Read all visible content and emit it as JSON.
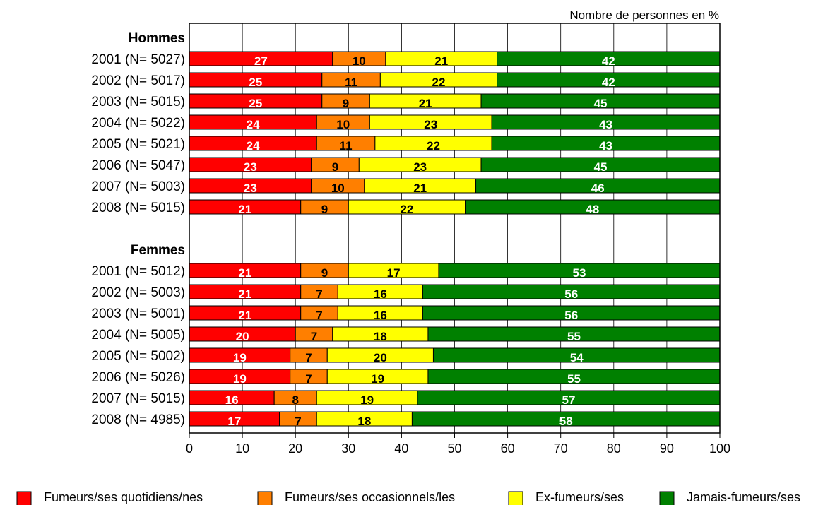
{
  "chart_data": {
    "type": "bar",
    "orientation": "horizontal",
    "stacked": true,
    "unit_label": "Nombre de personnes en %",
    "xlim": [
      0,
      100
    ],
    "x_ticks": [
      0,
      10,
      20,
      30,
      40,
      50,
      60,
      70,
      80,
      90,
      100
    ],
    "grid": true,
    "legend_position": "bottom",
    "series": [
      {
        "name": "Fumeurs/ses quotidiens/nes",
        "color": "#ff0000",
        "label_color": "#ffffff"
      },
      {
        "name": "Fumeurs/ses occasionnels/les",
        "color": "#ff7f00",
        "label_color": "#000000"
      },
      {
        "name": "Ex-fumeurs/ses",
        "color": "#ffff00",
        "label_color": "#000000"
      },
      {
        "name": "Jamais-fumeurs/ses",
        "color": "#008000",
        "label_color": "#ffffff"
      }
    ],
    "groups": [
      {
        "title": "Hommes",
        "rows": [
          {
            "label": "2001 (N= 5027)",
            "values": [
              27,
              10,
              21,
              42
            ]
          },
          {
            "label": "2002 (N= 5017)",
            "values": [
              25,
              11,
              22,
              42
            ]
          },
          {
            "label": "2003 (N= 5015)",
            "values": [
              25,
              9,
              21,
              45
            ]
          },
          {
            "label": "2004 (N= 5022)",
            "values": [
              24,
              10,
              23,
              43
            ]
          },
          {
            "label": "2005 (N= 5021)",
            "values": [
              24,
              11,
              22,
              43
            ]
          },
          {
            "label": "2006 (N= 5047)",
            "values": [
              23,
              9,
              23,
              45
            ]
          },
          {
            "label": "2007 (N= 5003)",
            "values": [
              23,
              10,
              21,
              46
            ]
          },
          {
            "label": "2008 (N= 5015)",
            "values": [
              21,
              9,
              22,
              48
            ]
          }
        ]
      },
      {
        "title": "Femmes",
        "rows": [
          {
            "label": "2001 (N= 5012)",
            "values": [
              21,
              9,
              17,
              53
            ]
          },
          {
            "label": "2002 (N= 5003)",
            "values": [
              21,
              7,
              16,
              56
            ]
          },
          {
            "label": "2003 (N= 5001)",
            "values": [
              21,
              7,
              16,
              56
            ]
          },
          {
            "label": "2004 (N= 5005)",
            "values": [
              20,
              7,
              18,
              55
            ]
          },
          {
            "label": "2005 (N= 5002)",
            "values": [
              19,
              7,
              20,
              54
            ]
          },
          {
            "label": "2006 (N= 5026)",
            "values": [
              19,
              7,
              19,
              55
            ]
          },
          {
            "label": "2007 (N= 5015)",
            "values": [
              16,
              8,
              19,
              57
            ]
          },
          {
            "label": "2008 (N= 4985)",
            "values": [
              17,
              7,
              18,
              58
            ]
          }
        ]
      }
    ]
  }
}
